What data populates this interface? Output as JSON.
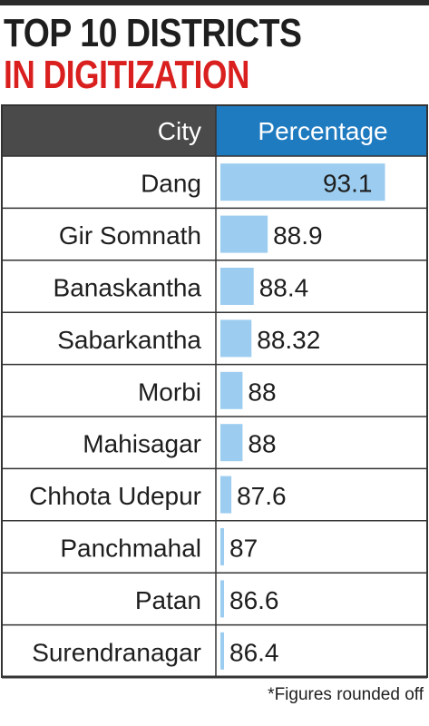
{
  "title_line1": "TOP 10 DISTRICTS",
  "title_line2": "IN DIGITIZATION",
  "header": {
    "city": "City",
    "percentage": "Percentage"
  },
  "footnote": "*Figures rounded off",
  "colors": {
    "title_dark": "#1e1e1e",
    "title_red": "#d9201f",
    "header_city_bg": "#4a4a4a",
    "header_pct_bg": "#1f7bc0",
    "bar": "#9ccdf0",
    "grid": "#333333"
  },
  "chart_data": {
    "type": "bar",
    "orientation": "horizontal",
    "xlabel": "City",
    "ylabel": "Percentage",
    "categories": [
      "Dang",
      "Gir Somnath",
      "Banaskantha",
      "Sabarkantha",
      "Morbi",
      "Mahisagar",
      "Chhota Udepur",
      "Panchmahal",
      "Patan",
      "Surendranagar"
    ],
    "values": [
      93.1,
      88.9,
      88.4,
      88.32,
      88,
      88,
      87.6,
      87,
      86.6,
      86.4
    ],
    "value_labels": [
      "93.1",
      "88.9",
      "88.4",
      "88.32",
      "88",
      "88",
      "87.6",
      "87",
      "86.6",
      "86.4"
    ],
    "grid": true
  }
}
